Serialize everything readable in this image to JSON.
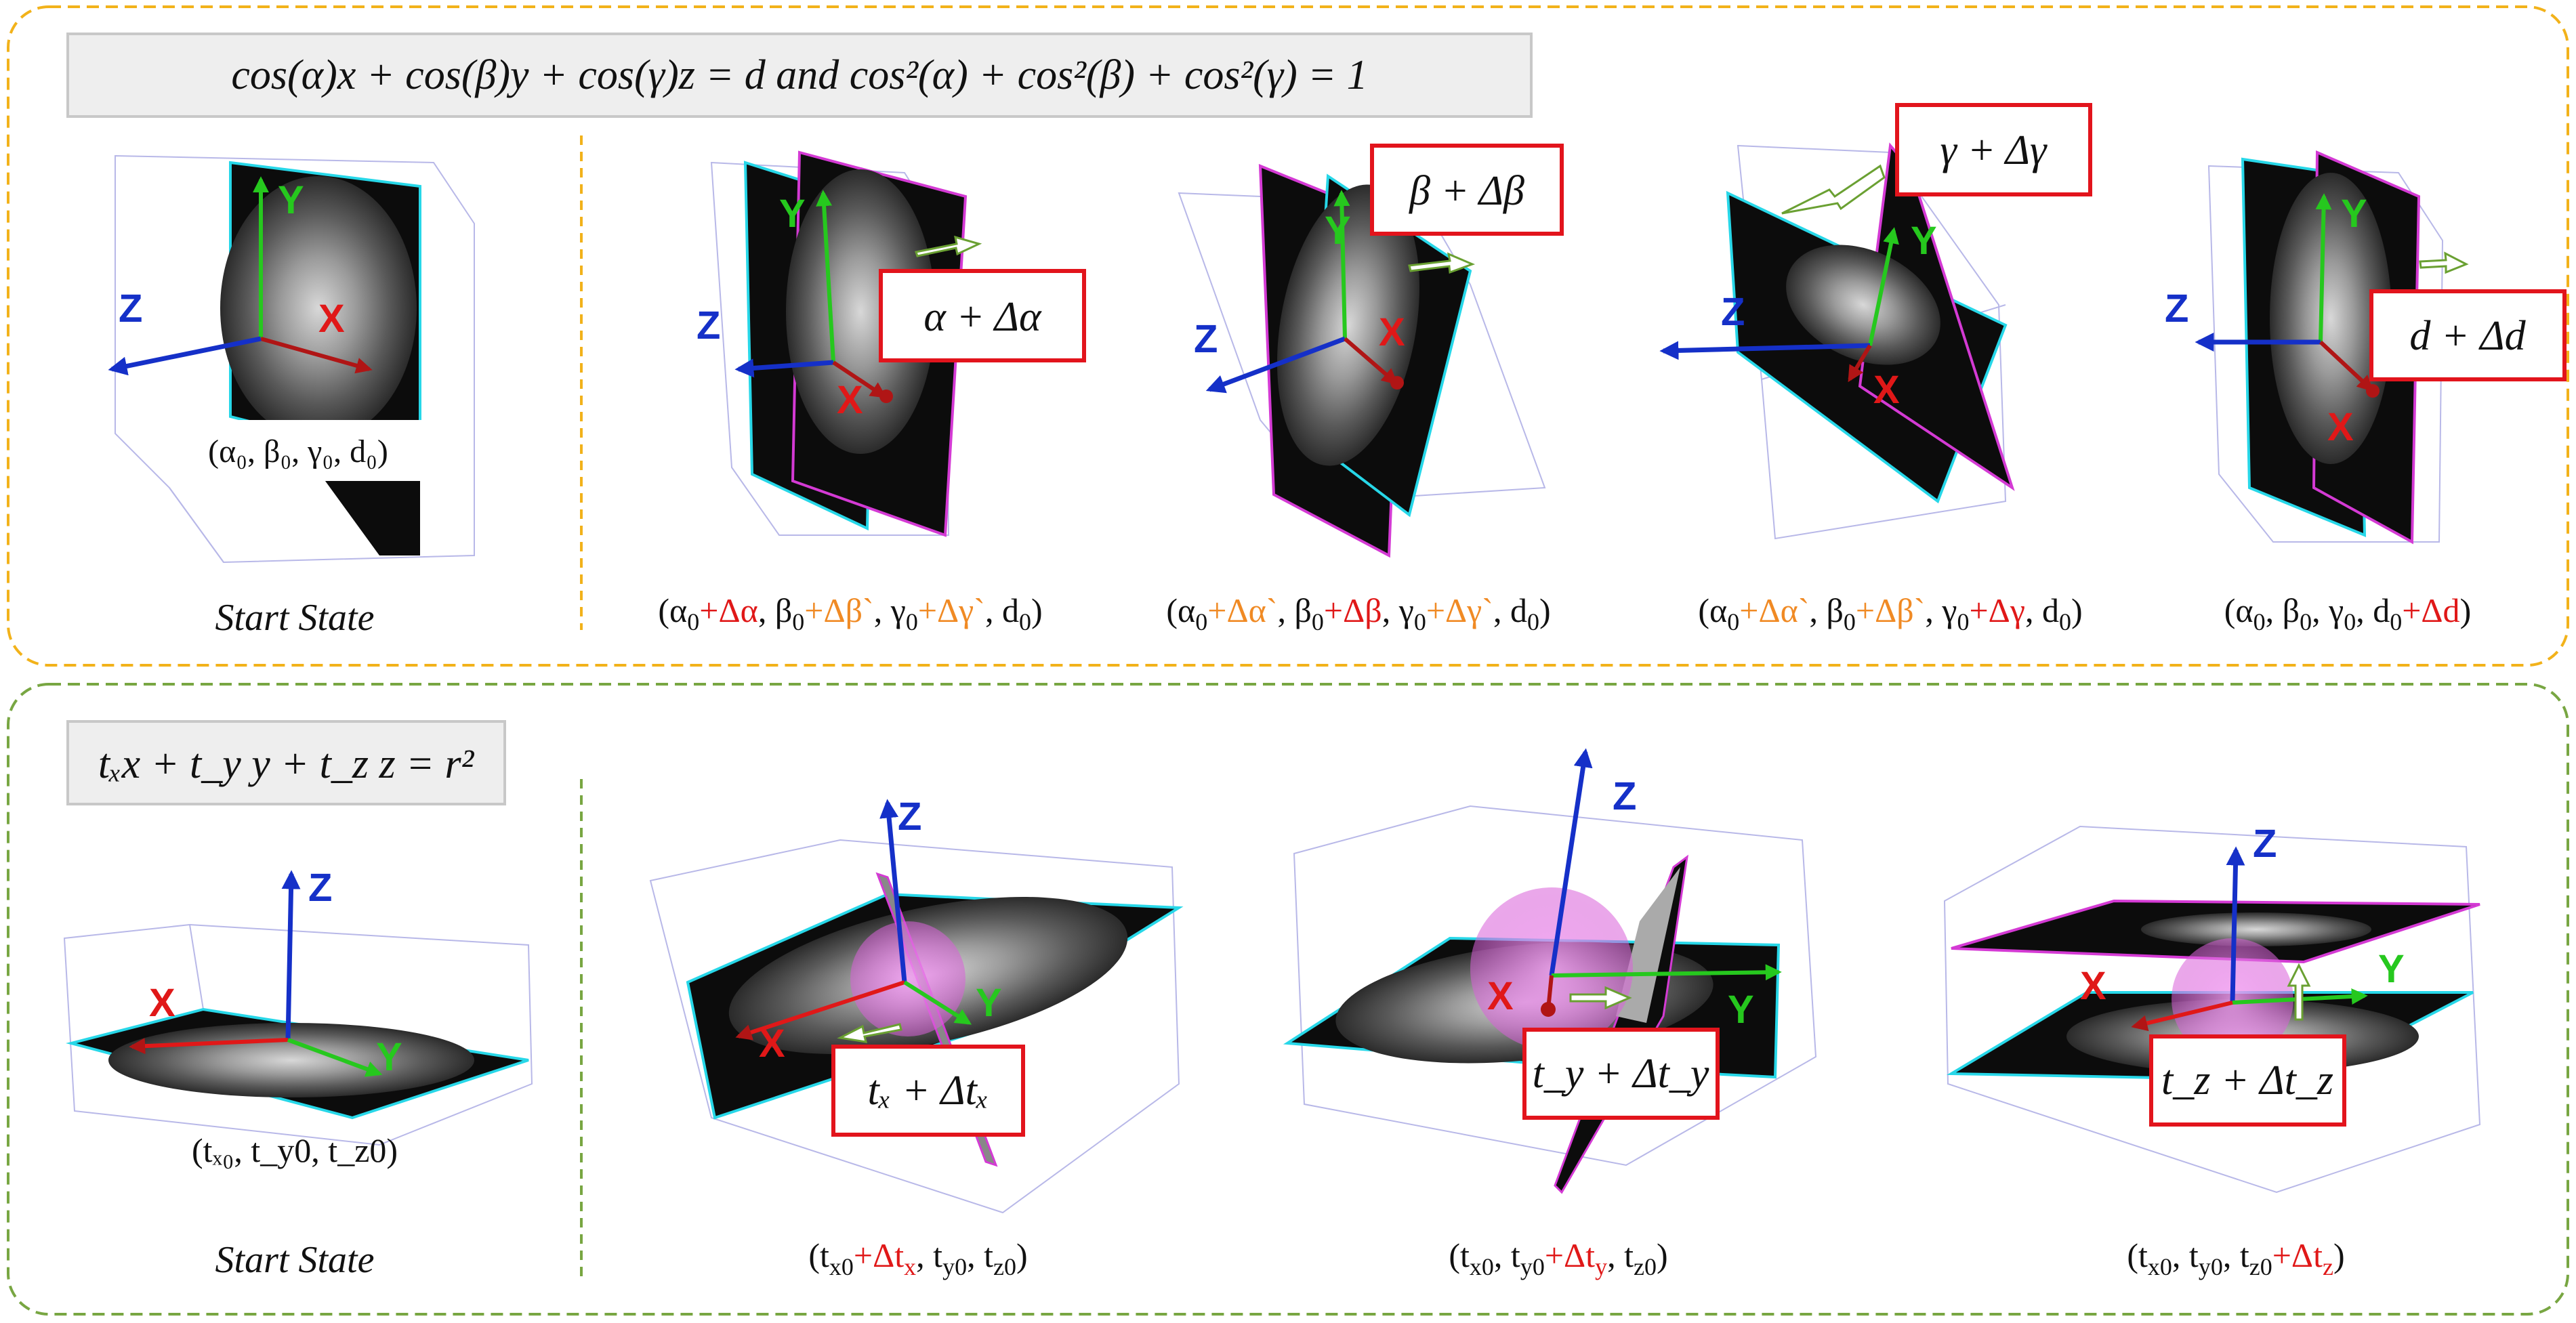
{
  "colors": {
    "top_border": "#f2b21a",
    "bottom_border": "#78a642",
    "divider_top": "#f2b21a",
    "divider_bottom": "#78a642",
    "box_red": "#e2141c",
    "axis_x": "#e01818",
    "axis_y": "#26c81e",
    "axis_z": "#1530c8",
    "plane_edge_cyan": "#27d7e8",
    "plane_edge_magenta": "#d43ad4",
    "delta_orange": "#f08a24",
    "delta_red": "#e01818",
    "sphere": "#e070e0"
  },
  "top": {
    "equation": "cos(α)x + cos(β)y + cos(γ)z = d  and cos²(α) + cos²(β) + cos²(γ) = 1",
    "start_label": "Start State",
    "start_params": "(α₀, β₀, γ₀, d₀)",
    "panels": [
      {
        "box": "α + Δα",
        "caption": [
          {
            "t": "(α",
            "c": "k"
          },
          {
            "t": "0",
            "c": "k",
            "sub": true
          },
          {
            "t": "+Δα",
            "c": "r"
          },
          {
            "t": ", β",
            "c": "k"
          },
          {
            "t": "0",
            "c": "k",
            "sub": true
          },
          {
            "t": "+Δβ`",
            "c": "o"
          },
          {
            "t": ", γ",
            "c": "k"
          },
          {
            "t": "0",
            "c": "k",
            "sub": true
          },
          {
            "t": "+Δγ`",
            "c": "o"
          },
          {
            "t": ", d",
            "c": "k"
          },
          {
            "t": "0",
            "c": "k",
            "sub": true
          },
          {
            "t": ")",
            "c": "k"
          }
        ]
      },
      {
        "box": "β + Δβ",
        "caption": [
          {
            "t": "(α",
            "c": "k"
          },
          {
            "t": "0",
            "c": "k",
            "sub": true
          },
          {
            "t": "+Δα`",
            "c": "o"
          },
          {
            "t": ", β",
            "c": "k"
          },
          {
            "t": "0",
            "c": "k",
            "sub": true
          },
          {
            "t": "+Δβ",
            "c": "r"
          },
          {
            "t": ", γ",
            "c": "k"
          },
          {
            "t": "0",
            "c": "k",
            "sub": true
          },
          {
            "t": "+Δγ`",
            "c": "o"
          },
          {
            "t": ", d",
            "c": "k"
          },
          {
            "t": "0",
            "c": "k",
            "sub": true
          },
          {
            "t": ")",
            "c": "k"
          }
        ]
      },
      {
        "box": "γ + Δγ",
        "caption": [
          {
            "t": "(α",
            "c": "k"
          },
          {
            "t": "0",
            "c": "k",
            "sub": true
          },
          {
            "t": "+Δα`",
            "c": "o"
          },
          {
            "t": ", β",
            "c": "k"
          },
          {
            "t": "0",
            "c": "k",
            "sub": true
          },
          {
            "t": "+Δβ`",
            "c": "o"
          },
          {
            "t": ", γ",
            "c": "k"
          },
          {
            "t": "0",
            "c": "k",
            "sub": true
          },
          {
            "t": "+Δγ",
            "c": "r"
          },
          {
            "t": ", d",
            "c": "k"
          },
          {
            "t": "0",
            "c": "k",
            "sub": true
          },
          {
            "t": ")",
            "c": "k"
          }
        ]
      },
      {
        "box": "d + Δd",
        "caption": [
          {
            "t": "(α",
            "c": "k"
          },
          {
            "t": "0",
            "c": "k",
            "sub": true
          },
          {
            "t": ", β",
            "c": "k"
          },
          {
            "t": "0",
            "c": "k",
            "sub": true
          },
          {
            "t": ", γ",
            "c": "k"
          },
          {
            "t": "0",
            "c": "k",
            "sub": true
          },
          {
            "t": ", d",
            "c": "k"
          },
          {
            "t": "0",
            "c": "k",
            "sub": true
          },
          {
            "t": "+Δd",
            "c": "r"
          },
          {
            "t": ")",
            "c": "k"
          }
        ]
      }
    ]
  },
  "bottom": {
    "equation": "tₓx + t_y y + t_z z = r²",
    "start_label": "Start State",
    "start_params": "(tₓ₀, t_y0, t_z0)",
    "panels": [
      {
        "box": "tₓ + Δtₓ",
        "caption": [
          {
            "t": "(t",
            "c": "k"
          },
          {
            "t": "x0",
            "c": "k",
            "sub": true
          },
          {
            "t": "+Δt",
            "c": "r"
          },
          {
            "t": "x",
            "c": "r",
            "sub": true
          },
          {
            "t": ", t",
            "c": "k"
          },
          {
            "t": "y0",
            "c": "k",
            "sub": true
          },
          {
            "t": ", t",
            "c": "k"
          },
          {
            "t": "z0",
            "c": "k",
            "sub": true
          },
          {
            "t": ")",
            "c": "k"
          }
        ]
      },
      {
        "box": "t_y + Δt_y",
        "caption": [
          {
            "t": "(t",
            "c": "k"
          },
          {
            "t": "x0",
            "c": "k",
            "sub": true
          },
          {
            "t": ", t",
            "c": "k"
          },
          {
            "t": "y0",
            "c": "k",
            "sub": true
          },
          {
            "t": "+Δt",
            "c": "r"
          },
          {
            "t": "y",
            "c": "r",
            "sub": true
          },
          {
            "t": ", t",
            "c": "k"
          },
          {
            "t": "z0",
            "c": "k",
            "sub": true
          },
          {
            "t": ")",
            "c": "k"
          }
        ]
      },
      {
        "box": "t_z + Δt_z",
        "caption": [
          {
            "t": "(t",
            "c": "k"
          },
          {
            "t": "x0",
            "c": "k",
            "sub": true
          },
          {
            "t": ", t",
            "c": "k"
          },
          {
            "t": "y0",
            "c": "k",
            "sub": true
          },
          {
            "t": ", t",
            "c": "k"
          },
          {
            "t": "z0",
            "c": "k",
            "sub": true
          },
          {
            "t": "+Δt",
            "c": "r"
          },
          {
            "t": "z",
            "c": "r",
            "sub": true
          },
          {
            "t": ")",
            "c": "k"
          }
        ]
      }
    ]
  },
  "axes": {
    "x": "X",
    "y": "Y",
    "z": "Z"
  }
}
